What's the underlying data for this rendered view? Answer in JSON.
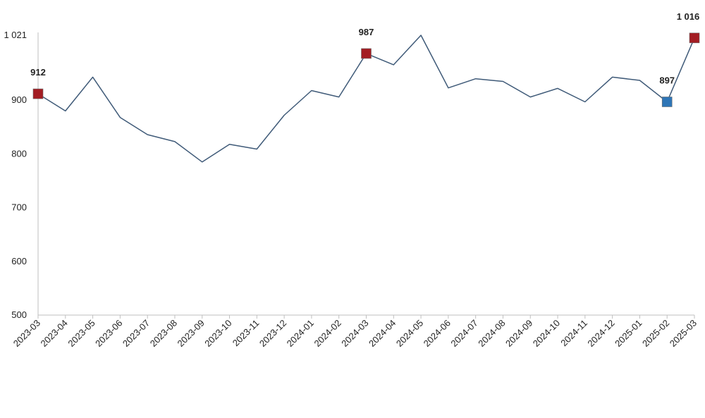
{
  "chart_data": {
    "type": "line",
    "categories": [
      "2023-03",
      "2023-04",
      "2023-05",
      "2023-06",
      "2023-07",
      "2023-08",
      "2023-09",
      "2023-10",
      "2023-11",
      "2023-12",
      "2024-01",
      "2024-02",
      "2024-03",
      "2024-04",
      "2024-05",
      "2024-06",
      "2024-07",
      "2024-08",
      "2024-09",
      "2024-10",
      "2024-11",
      "2024-12",
      "2025-01",
      "2025-02",
      "2025-03"
    ],
    "series": [
      {
        "values": [
          912,
          880,
          943,
          868,
          836,
          823,
          785,
          818,
          809,
          872,
          918,
          906,
          987,
          966,
          1021,
          923,
          940,
          935,
          906,
          922,
          897,
          943,
          937,
          897,
          1016
        ]
      }
    ],
    "y_ticks": [
      500,
      600,
      700,
      800,
      900,
      1021
    ],
    "y_tick_labels": [
      "500",
      "600",
      "700",
      "800",
      "900",
      "1 021"
    ],
    "ylim": [
      500,
      1021
    ],
    "grid": false,
    "line_color": "#3f5a78",
    "markers": [
      {
        "index": 0,
        "label": "912",
        "color": "#a31d23"
      },
      {
        "index": 12,
        "label": "987",
        "color": "#a31d23"
      },
      {
        "index": 23,
        "label": "897",
        "color": "#2e75b6"
      },
      {
        "index": 24,
        "label": "1 016",
        "color": "#a31d23"
      }
    ]
  }
}
